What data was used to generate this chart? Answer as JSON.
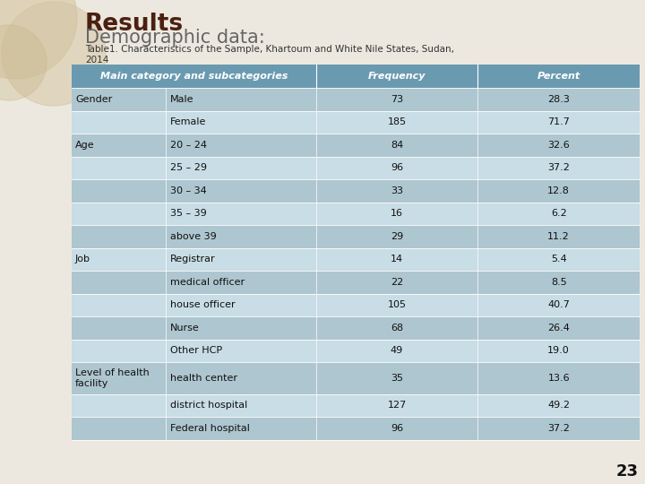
{
  "title1": "Results",
  "title2": "Demographic data:",
  "subtitle": "Table1. Characteristics of the Sample, Khartoum and White Nile States, Sudan,\n2014",
  "header": [
    "Main category and subcategories",
    "Frequency",
    "Percent"
  ],
  "rows": [
    [
      "Gender",
      "Male",
      "73",
      "28.3"
    ],
    [
      "",
      "Female",
      "185",
      "71.7"
    ],
    [
      "Age",
      "20 – 24",
      "84",
      "32.6"
    ],
    [
      "",
      "25 – 29",
      "96",
      "37.2"
    ],
    [
      "",
      "30 – 34",
      "33",
      "12.8"
    ],
    [
      "",
      "35 – 39",
      "16",
      "6.2"
    ],
    [
      "",
      "above 39",
      "29",
      "11.2"
    ],
    [
      "Job",
      "Registrar",
      "14",
      "5.4"
    ],
    [
      "",
      "medical officer",
      "22",
      "8.5"
    ],
    [
      "",
      "house officer",
      "105",
      "40.7"
    ],
    [
      "",
      "Nurse",
      "68",
      "26.4"
    ],
    [
      "",
      "Other HCP",
      "49",
      "19.0"
    ],
    [
      "Level of health\nfacility",
      "health center",
      "35",
      "13.6"
    ],
    [
      "",
      "district hospital",
      "127",
      "49.2"
    ],
    [
      "",
      "Federal hospital",
      "96",
      "37.2"
    ]
  ],
  "header_bg": "#6a9ab0",
  "row_bg_dark": "#aec6cf",
  "row_bg_light": "#c8dde5",
  "header_text_color": "#ffffff",
  "text_color": "#111111",
  "slide_bg": "#ede8df",
  "circle_color1": "#d4c4a0",
  "circle_color2": "#c8b88a",
  "title1_color": "#4a2010",
  "title2_color": "#666666",
  "subtitle_color": "#333333",
  "page_number": "23"
}
